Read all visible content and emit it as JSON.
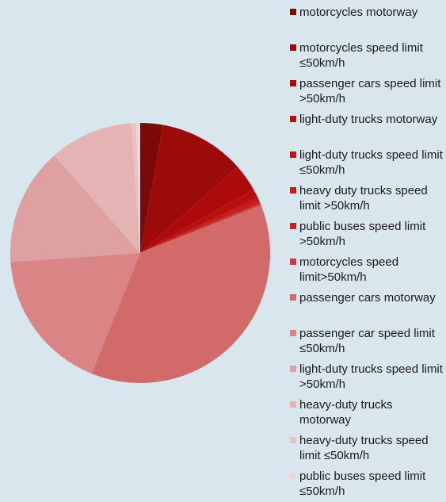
{
  "chart_data": {
    "type": "pie",
    "categories": [
      "motorcycles motorway",
      "motorcycles speed limit ≤50km/h",
      "passenger cars speed limit >50km/h",
      "light-duty trucks motorway",
      "light-duty trucks speed limit ≤50km/h",
      "heavy duty trucks speed limit >50km/h",
      "public buses speed limit >50km/h",
      "motorcycles speed limit>50km/h",
      "passenger cars motorway",
      "passenger car speed limit ≤50km/h",
      "light-duty trucks speed limit >50km/h",
      "heavy-duty trucks motorway",
      "heavy-duty trucks speed limit ≤50km/h",
      "public buses speed limit ≤50km/h"
    ],
    "values": [
      2.8,
      10.7,
      3.4,
      1.1,
      0.3,
      0.3,
      0.2,
      0.2,
      37.1,
      17.8,
      14.6,
      10.4,
      0.6,
      0.5
    ],
    "colors": [
      "#7a0a0a",
      "#9c0a0a",
      "#ad0b0b",
      "#bb0e0e",
      "#c11414",
      "#c51a1a",
      "#c92020",
      "#cd3a3a",
      "#d26a6a",
      "#d98585",
      "#dea0a0",
      "#e4b4b4",
      "#e9c3c3",
      "#efd6d6"
    ]
  }
}
